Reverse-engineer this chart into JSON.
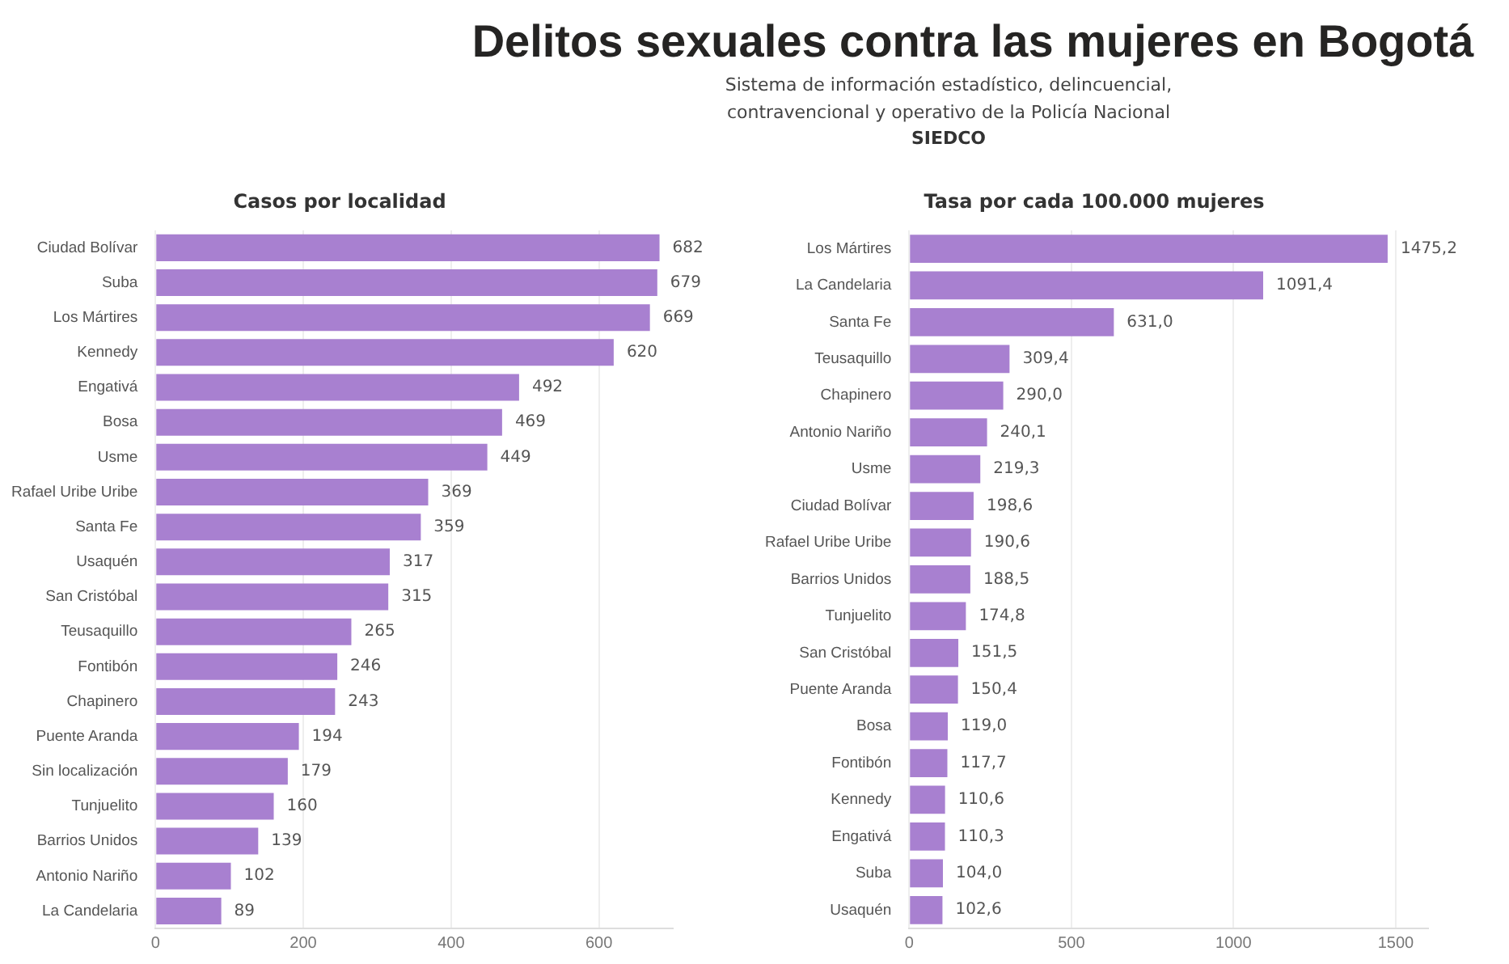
{
  "chart_data": [
    {
      "type": "other",
      "title": "Delitos sexuales contra las mujeres en Bogotá",
      "subtitle": "Sistema de información estadístico, delincuencial, contravencional y operativo de la Policía Nacional",
      "annotations": [
        "SIEDCO"
      ]
    },
    {
      "type": "bar",
      "orientation": "horizontal",
      "title": "Casos por localidad",
      "categories": [
        "Ciudad Bolívar",
        "Suba",
        "Los Mártires",
        "Kennedy",
        "Engativá",
        "Bosa",
        "Usme",
        "Rafael Uribe Uribe",
        "Santa Fe",
        "Usaquén",
        "San Cristóbal",
        "Teusaquillo",
        "Fontibón",
        "Chapinero",
        "Puente Aranda",
        "Sin localización",
        "Tunjuelito",
        "Barrios Unidos",
        "Antonio Nariño",
        "La Candelaria"
      ],
      "values": [
        682,
        679,
        669,
        620,
        492,
        469,
        449,
        369,
        359,
        317,
        315,
        265,
        246,
        243,
        194,
        179,
        160,
        139,
        102,
        89
      ],
      "color": "#a880d0",
      "xlim": [
        0,
        700
      ],
      "xticks": [
        0,
        200,
        400,
        600
      ],
      "grid": "x",
      "data_labels": true
    },
    {
      "type": "bar",
      "orientation": "horizontal",
      "title": "Tasa por cada 100.000 mujeres",
      "categories": [
        "Los Mártires",
        "La Candelaria",
        "Santa Fe",
        "Teusaquillo",
        "Chapinero",
        "Antonio Nariño",
        "Usme",
        "Ciudad Bolívar",
        "Rafael Uribe Uribe",
        "Barrios Unidos",
        "Tunjuelito",
        "San Cristóbal",
        "Puente Aranda",
        "Bosa",
        "Fontibón",
        "Kennedy",
        "Engativá",
        "Suba",
        "Usaquén"
      ],
      "values": [
        1475.2,
        1091.4,
        631.0,
        309.4,
        290.0,
        240.1,
        219.3,
        198.6,
        190.6,
        188.5,
        174.8,
        151.5,
        150.4,
        119.0,
        117.7,
        110.6,
        110.3,
        104.0,
        102.6
      ],
      "value_labels": [
        "1475,2",
        "1091,4",
        "631,0",
        "309,4",
        "290,0",
        "240,1",
        "219,3",
        "198,6",
        "190,6",
        "188,5",
        "174,8",
        "151,5",
        "150,4",
        "119,0",
        "117,7",
        "110,6",
        "110,3",
        "104,0",
        "102,6"
      ],
      "color": "#a880d0",
      "xlim": [
        0,
        1600
      ],
      "xticks": [
        0,
        500,
        1000,
        1500
      ],
      "grid": "x"
    }
  ]
}
